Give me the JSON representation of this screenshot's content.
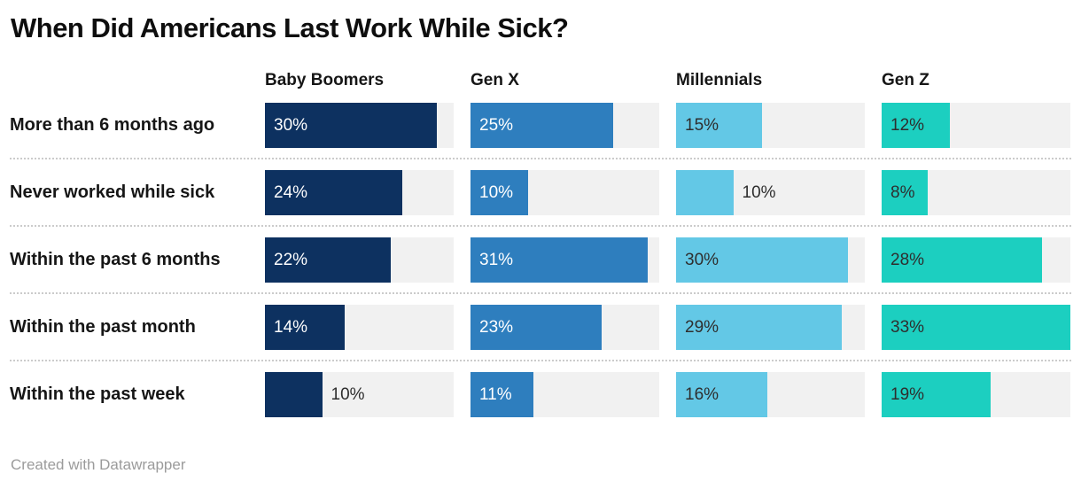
{
  "title": "When Did Americans Last Work While Sick?",
  "footer": {
    "credit": "Created with Datawrapper"
  },
  "chart_data": {
    "type": "bar",
    "orientation": "horizontal",
    "layout": "one bar column per generation, light gray track behind each bar",
    "title": "When Did Americans Last Work While Sick?",
    "categories": [
      "More than 6 months ago",
      "Never worked while sick",
      "Within the past 6 months",
      "Within the past month",
      "Within the past week"
    ],
    "series": [
      {
        "name": "Baby Boomers",
        "color": "#0d3160",
        "label_color": "#ffffff",
        "values": [
          30,
          24,
          22,
          14,
          10
        ]
      },
      {
        "name": "Gen X",
        "color": "#2e7ebe",
        "label_color": "#ffffff",
        "values": [
          25,
          10,
          31,
          23,
          11
        ]
      },
      {
        "name": "Millennials",
        "color": "#63c8e6",
        "label_color": "#2e2e2e",
        "values": [
          15,
          10,
          30,
          29,
          16
        ]
      },
      {
        "name": "Gen Z",
        "color": "#1ccfc0",
        "label_color": "#2e2e2e",
        "values": [
          12,
          8,
          28,
          33,
          19
        ]
      }
    ],
    "value_suffix": "%",
    "xmax": 33,
    "outside_labels": [
      {
        "series": 0,
        "row": 4
      },
      {
        "series": 2,
        "row": 1
      }
    ],
    "outside_label_color": "#2e2e2e",
    "track_color": "#f1f1f1",
    "separator_color": "#cbcbcb",
    "grid": false,
    "legend_position": "column headers above bars"
  }
}
